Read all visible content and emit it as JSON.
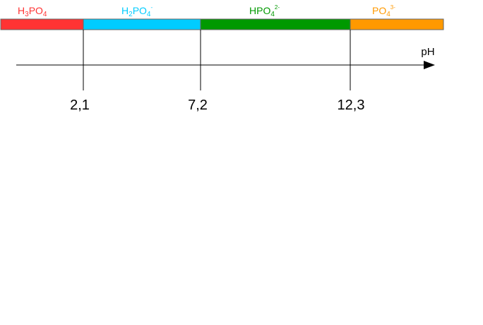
{
  "species": [
    {
      "label": [
        "H",
        "3",
        "PO",
        "4"
      ]
    },
    {
      "label": [
        "H",
        "2",
        "PO",
        "4",
        "-"
      ]
    },
    {
      "label": [
        "HPO",
        "4",
        "2-"
      ]
    },
    {
      "label": [
        "PO",
        "4",
        "3-"
      ]
    }
  ],
  "axis": {
    "label": "pH"
  },
  "boundaries": [
    {
      "label": "2,1"
    },
    {
      "label": "7,2"
    },
    {
      "label": "12,3"
    }
  ]
}
